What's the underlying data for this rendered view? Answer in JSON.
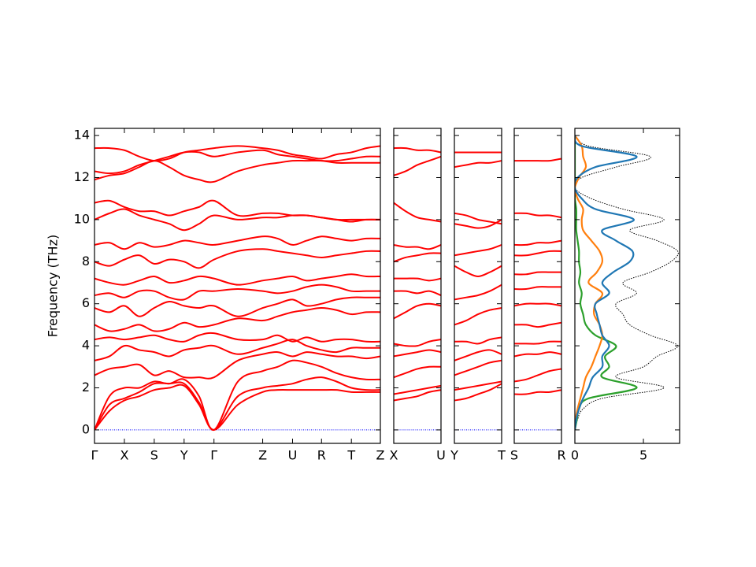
{
  "chart_data": [
    {
      "type": "bands",
      "ylabel": "Frequency (THz)",
      "show_ytick_labels": true,
      "x": [
        0,
        0.5,
        1,
        1.5,
        2,
        2.5,
        3,
        3.5,
        4,
        4.8,
        5.63,
        6.13,
        6.63,
        7.1,
        7.6,
        8.1,
        8.6,
        9.1,
        9.57
      ],
      "xlim": [
        0,
        9.57
      ],
      "xticks": [
        {
          "value": 0,
          "label": "Γ"
        },
        {
          "value": 1,
          "label": "X"
        },
        {
          "value": 2,
          "label": "S"
        },
        {
          "value": 3,
          "label": "Y"
        },
        {
          "value": 4,
          "label": "Γ"
        },
        {
          "value": 5.63,
          "label": "Z"
        },
        {
          "value": 6.63,
          "label": "U"
        },
        {
          "value": 7.6,
          "label": "R"
        },
        {
          "value": 8.6,
          "label": "T"
        },
        {
          "value": 9.57,
          "label": "Z"
        }
      ],
      "ylim": [
        -0.64,
        14.34
      ],
      "yticks": [
        0,
        2,
        4,
        6,
        8,
        10,
        12,
        14
      ],
      "color": "#ff0000",
      "hline": 0,
      "hline_color": "#0000ff",
      "bands": [
        [
          0,
          0.9,
          1.4,
          1.6,
          1.9,
          2.0,
          2.1,
          1.2,
          0,
          1.2,
          1.8,
          1.9,
          1.9,
          1.9,
          1.9,
          1.9,
          1.8,
          1.8,
          1.8
        ],
        [
          0,
          1.2,
          1.5,
          1.8,
          2.2,
          2.2,
          2.2,
          1.3,
          0,
          1.6,
          2.0,
          2.1,
          2.2,
          2.4,
          2.5,
          2.3,
          2.0,
          1.9,
          1.9
        ],
        [
          0,
          1.6,
          2.0,
          2.0,
          2.3,
          2.2,
          2.4,
          1.6,
          0,
          2.3,
          2.8,
          3.0,
          3.3,
          3.2,
          3.0,
          2.7,
          2.5,
          2.4,
          2.4
        ],
        [
          2.6,
          2.9,
          3.0,
          3.1,
          2.6,
          2.8,
          2.5,
          2.5,
          2.5,
          3.3,
          3.6,
          3.7,
          3.5,
          3.7,
          3.6,
          3.5,
          3.5,
          3.4,
          3.5
        ],
        [
          3.3,
          3.5,
          4.0,
          3.8,
          3.7,
          3.5,
          3.8,
          3.9,
          4.0,
          3.6,
          3.9,
          4.1,
          4.3,
          4.0,
          3.8,
          3.7,
          3.9,
          3.9,
          3.9
        ],
        [
          4.3,
          4.4,
          4.3,
          4.4,
          4.5,
          4.3,
          4.2,
          4.5,
          4.6,
          4.3,
          4.3,
          4.5,
          4.2,
          4.4,
          4.2,
          4.3,
          4.3,
          4.2,
          4.2
        ],
        [
          5.0,
          4.7,
          4.8,
          5.0,
          4.7,
          4.8,
          5.1,
          4.9,
          5.0,
          5.3,
          5.2,
          5.4,
          5.6,
          5.7,
          5.8,
          5.7,
          5.5,
          5.6,
          5.6
        ],
        [
          5.8,
          5.6,
          5.9,
          5.4,
          5.8,
          6.1,
          5.9,
          5.8,
          5.9,
          5.4,
          5.8,
          6.0,
          6.2,
          5.9,
          6.0,
          6.2,
          6.3,
          6.3,
          6.3
        ],
        [
          6.4,
          6.5,
          6.3,
          6.6,
          6.6,
          6.3,
          6.2,
          6.6,
          6.6,
          6.7,
          6.6,
          6.5,
          6.6,
          6.8,
          6.9,
          6.8,
          6.6,
          6.6,
          6.6
        ],
        [
          7.2,
          7.0,
          6.9,
          7.1,
          7.3,
          7.0,
          7.1,
          7.3,
          7.2,
          6.9,
          7.1,
          7.2,
          7.3,
          7.1,
          7.2,
          7.3,
          7.4,
          7.3,
          7.3
        ],
        [
          8.0,
          7.8,
          8.1,
          8.3,
          7.9,
          8.1,
          8.0,
          7.7,
          8.1,
          8.5,
          8.6,
          8.5,
          8.4,
          8.3,
          8.2,
          8.3,
          8.4,
          8.5,
          8.5
        ],
        [
          8.8,
          8.9,
          8.6,
          8.9,
          8.7,
          8.8,
          9.0,
          8.9,
          8.8,
          9.0,
          9.2,
          9.1,
          8.8,
          9.0,
          9.2,
          9.1,
          9.0,
          9.1,
          9.1
        ],
        [
          10.0,
          10.3,
          10.5,
          10.2,
          10.0,
          9.8,
          9.5,
          9.8,
          10.2,
          10.0,
          10.1,
          10.1,
          10.2,
          10.2,
          10.1,
          10.0,
          9.9,
          10.0,
          10.0
        ],
        [
          10.8,
          10.9,
          10.6,
          10.4,
          10.4,
          10.2,
          10.4,
          10.6,
          10.9,
          10.2,
          10.3,
          10.3,
          10.2,
          10.2,
          10.1,
          10.0,
          10.0,
          10.0,
          10.0
        ],
        [
          11.9,
          12.1,
          12.2,
          12.5,
          12.8,
          12.5,
          12.1,
          11.9,
          11.8,
          12.3,
          12.6,
          12.7,
          12.8,
          12.8,
          12.8,
          12.7,
          12.7,
          12.7,
          12.7
        ],
        [
          12.3,
          12.2,
          12.3,
          12.6,
          12.8,
          13.0,
          13.2,
          13.2,
          13.0,
          13.2,
          13.3,
          13.1,
          13.0,
          12.9,
          12.8,
          12.8,
          12.9,
          13.0,
          13.0
        ],
        [
          13.4,
          13.4,
          13.3,
          13.0,
          12.8,
          12.9,
          13.2,
          13.3,
          13.4,
          13.5,
          13.4,
          13.3,
          13.1,
          13.0,
          12.9,
          13.1,
          13.2,
          13.4,
          13.5
        ]
      ]
    },
    {
      "type": "bands",
      "show_ytick_labels": false,
      "x": [
        0,
        0.25,
        0.5,
        0.75,
        1
      ],
      "xlim": [
        0,
        1
      ],
      "xticks": [
        {
          "value": 0,
          "label": "X"
        },
        {
          "value": 1,
          "label": "U"
        }
      ],
      "ylim": [
        -0.64,
        14.34
      ],
      "yticks": [
        0,
        2,
        4,
        6,
        8,
        10,
        12,
        14
      ],
      "color": "#ff0000",
      "hline": 0,
      "hline_color": "#0000ff",
      "bands": [
        [
          1.4,
          1.5,
          1.6,
          1.8,
          1.9
        ],
        [
          1.7,
          1.8,
          1.9,
          2.0,
          2.1
        ],
        [
          2.5,
          2.7,
          2.9,
          3.0,
          3.0
        ],
        [
          3.5,
          3.6,
          3.7,
          3.8,
          3.7
        ],
        [
          4.1,
          4.0,
          4.0,
          4.2,
          4.3
        ],
        [
          5.3,
          5.6,
          5.9,
          6.0,
          5.9
        ],
        [
          6.6,
          6.6,
          6.5,
          6.6,
          6.4
        ],
        [
          7.2,
          7.2,
          7.2,
          7.1,
          7.2
        ],
        [
          8.0,
          8.2,
          8.3,
          8.4,
          8.4
        ],
        [
          8.8,
          8.7,
          8.7,
          8.6,
          8.8
        ],
        [
          10.8,
          10.4,
          10.1,
          10.0,
          9.9
        ],
        [
          12.1,
          12.3,
          12.6,
          12.8,
          13.0
        ],
        [
          13.4,
          13.4,
          13.3,
          13.3,
          13.2
        ]
      ]
    },
    {
      "type": "bands",
      "show_ytick_labels": false,
      "x": [
        0,
        0.25,
        0.5,
        0.75,
        1
      ],
      "xlim": [
        0,
        1
      ],
      "xticks": [
        {
          "value": 0,
          "label": "Y"
        },
        {
          "value": 1,
          "label": "T"
        }
      ],
      "ylim": [
        -0.64,
        14.34
      ],
      "yticks": [
        0,
        2,
        4,
        6,
        8,
        10,
        12,
        14
      ],
      "color": "#ff0000",
      "hline": 0,
      "hline_color": "#0000ff",
      "bands": [
        [
          1.4,
          1.5,
          1.7,
          1.9,
          2.2
        ],
        [
          1.9,
          2.0,
          2.1,
          2.2,
          2.3
        ],
        [
          2.6,
          2.8,
          3.0,
          3.2,
          3.3
        ],
        [
          3.3,
          3.5,
          3.7,
          3.8,
          3.6
        ],
        [
          4.2,
          4.2,
          4.1,
          4.3,
          4.4
        ],
        [
          5.0,
          5.2,
          5.5,
          5.7,
          5.8
        ],
        [
          6.2,
          6.3,
          6.4,
          6.6,
          6.9
        ],
        [
          7.8,
          7.5,
          7.3,
          7.5,
          7.8
        ],
        [
          8.3,
          8.4,
          8.5,
          8.6,
          8.8
        ],
        [
          9.8,
          9.7,
          9.6,
          9.7,
          10.0
        ],
        [
          10.3,
          10.2,
          10.0,
          9.9,
          9.8
        ],
        [
          12.5,
          12.6,
          12.7,
          12.7,
          12.8
        ],
        [
          13.2,
          13.2,
          13.2,
          13.2,
          13.2
        ]
      ]
    },
    {
      "type": "bands",
      "show_ytick_labels": false,
      "x": [
        0,
        0.25,
        0.5,
        0.75,
        1
      ],
      "xlim": [
        0,
        1
      ],
      "xticks": [
        {
          "value": 0,
          "label": "S"
        },
        {
          "value": 1,
          "label": "R"
        }
      ],
      "ylim": [
        -0.64,
        14.34
      ],
      "yticks": [
        0,
        2,
        4,
        6,
        8,
        10,
        12,
        14
      ],
      "color": "#ff0000",
      "hline": 0,
      "hline_color": "#0000ff",
      "bands": [
        [
          1.7,
          1.7,
          1.8,
          1.8,
          1.9
        ],
        [
          2.3,
          2.4,
          2.6,
          2.8,
          2.9
        ],
        [
          3.5,
          3.6,
          3.6,
          3.7,
          3.6
        ],
        [
          4.1,
          4.1,
          4.1,
          4.2,
          4.2
        ],
        [
          5.0,
          5.0,
          4.9,
          5.0,
          5.1
        ],
        [
          5.9,
          6.0,
          6.0,
          6.0,
          5.9
        ],
        [
          6.7,
          6.7,
          6.8,
          6.8,
          6.8
        ],
        [
          7.4,
          7.4,
          7.5,
          7.5,
          7.5
        ],
        [
          8.3,
          8.3,
          8.4,
          8.5,
          8.5
        ],
        [
          8.8,
          8.8,
          8.9,
          8.9,
          9.0
        ],
        [
          10.3,
          10.3,
          10.2,
          10.2,
          10.1
        ],
        [
          12.8,
          12.8,
          12.8,
          12.8,
          12.9
        ]
      ]
    },
    {
      "type": "dos",
      "show_ytick_labels": false,
      "freq": [
        0,
        0.5,
        1,
        1.5,
        2,
        2.5,
        3,
        3.5,
        4,
        4.5,
        5,
        5.5,
        6,
        6.5,
        7,
        7.5,
        8,
        8.5,
        9,
        9.5,
        10,
        10.5,
        11,
        11.5,
        12,
        12.5,
        13,
        13.5,
        14
      ],
      "xlim": [
        0,
        7.64
      ],
      "xticks": [
        0,
        5
      ],
      "ylim": [
        -0.64,
        14.34
      ],
      "yticks": [
        0,
        2,
        4,
        6,
        8,
        10,
        12,
        14
      ],
      "series": [
        {
          "color": "#000000",
          "style": "dotted",
          "values": [
            0,
            0.2,
            0.6,
            2.0,
            6.5,
            3.0,
            5.0,
            6.0,
            7.5,
            5.5,
            4.0,
            3.5,
            3.0,
            4.5,
            3.5,
            5.5,
            7.0,
            7.5,
            6.0,
            4.0,
            6.5,
            3.5,
            1.2,
            0,
            0.5,
            3.0,
            5.5,
            1.0,
            0
          ]
        },
        {
          "color": "#2ca02c",
          "style": "solid",
          "values": [
            0,
            0.15,
            0.3,
            1.0,
            4.5,
            2.0,
            2.5,
            2.2,
            3.0,
            1.5,
            0.8,
            0.6,
            0.4,
            0.5,
            0.3,
            0.4,
            0.3,
            0.3,
            0.2,
            0.1,
            0.1,
            0.1,
            0,
            0,
            0,
            0,
            0,
            0,
            0
          ]
        },
        {
          "color": "#ff7f0e",
          "style": "solid",
          "values": [
            0,
            0.05,
            0.2,
            0.4,
            0.6,
            0.8,
            1.2,
            1.5,
            1.8,
            2.0,
            1.8,
            1.4,
            1.5,
            2.0,
            1.0,
            1.6,
            2.0,
            1.8,
            1.2,
            0.6,
            0.5,
            0.6,
            0.2,
            0,
            0.3,
            0.8,
            0.6,
            0.5,
            0
          ]
        },
        {
          "color": "#1f77b4",
          "style": "solid",
          "values": [
            0,
            0.1,
            0.3,
            0.6,
            1.0,
            1.3,
            2.0,
            2.0,
            2.5,
            2.0,
            1.8,
            1.6,
            1.5,
            2.5,
            2.0,
            2.8,
            4.0,
            4.2,
            3.0,
            2.0,
            4.3,
            1.5,
            0.5,
            0,
            0.2,
            1.5,
            4.5,
            0.5,
            0
          ]
        }
      ]
    }
  ]
}
